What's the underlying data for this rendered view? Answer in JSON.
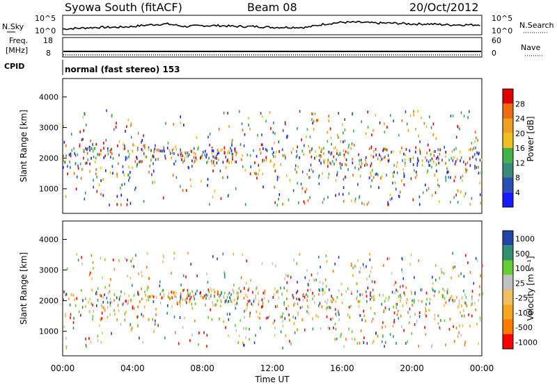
{
  "header": {
    "title": "Syowa South (fitACF)",
    "beam": "Beam 08",
    "date": "20/Oct/2012"
  },
  "sky_panel": {
    "left_label": "N.Sky",
    "right_label": "N.Search",
    "left_ticks": [
      "10^5",
      "10^0"
    ],
    "right_ticks": [
      "10^5",
      "10^0"
    ]
  },
  "freq_panel": {
    "label_top": "Freq.",
    "label_bottom": "[MHz]",
    "right_label": "Nave",
    "left_ticks": [
      "18",
      "8"
    ],
    "right_ticks": [
      "60",
      "0"
    ]
  },
  "cpid": {
    "label": "CPID",
    "text": "normal (fast stereo) 153"
  },
  "colors": {
    "power_scale": [
      "#1a1aff",
      "#2a4fb4",
      "#3a8a7a",
      "#44b24a",
      "#f0c020",
      "#f0a020",
      "#ee6a10",
      "#e00000"
    ],
    "velocity_scale": [
      "#ff0000",
      "#ff7a00",
      "#f5a623",
      "#f0c060",
      "#c0c0c0",
      "#66cc33",
      "#2f8f6f",
      "#2244aa"
    ]
  },
  "chart_data": [
    {
      "type": "line",
      "name": "N.Sky / N.Search",
      "ylim_ticks": [
        "10^0",
        "10^5"
      ],
      "xlim": [
        "00:00",
        "24:00"
      ],
      "description_values": {
        "x_hours": [
          0,
          1,
          2,
          3,
          4,
          5,
          6,
          7,
          8,
          9,
          10,
          11,
          12,
          13,
          14,
          15,
          16,
          17,
          18,
          19,
          20,
          21,
          22,
          23,
          24
        ],
        "level": [
          0.2,
          0.25,
          0.3,
          0.3,
          0.35,
          0.45,
          0.5,
          0.35,
          0.4,
          0.4,
          0.35,
          0.35,
          0.3,
          0.3,
          0.3,
          0.5,
          0.6,
          0.6,
          0.55,
          0.55,
          0.5,
          0.5,
          0.45,
          0.45,
          0.45
        ]
      }
    },
    {
      "type": "scatter",
      "name": "Power",
      "ylabel": "Slant Range [km]",
      "yticks": [
        1000,
        2000,
        3000,
        4000
      ],
      "ylim": [
        200,
        4600
      ],
      "colorbar": {
        "label": "Power [dB]",
        "ticks": [
          "4",
          "8",
          "12",
          "16",
          "20",
          "24",
          "28"
        ]
      },
      "xticks": [
        "00:00",
        "04:00",
        "08:00",
        "12:00",
        "16:00",
        "20:00",
        "00:00"
      ]
    },
    {
      "type": "scatter",
      "name": "Velocity",
      "ylabel": "Slant Range [km]",
      "yticks": [
        1000,
        2000,
        3000,
        4000
      ],
      "ylim": [
        200,
        4600
      ],
      "xlabel": "Time UT",
      "colorbar": {
        "label": "Velocity [m s⁻¹]",
        "ticks": [
          "1000",
          "500",
          "100",
          "25",
          "-25",
          "-100",
          "-500",
          "-1000"
        ]
      },
      "xticks": [
        "00:00",
        "04:00",
        "08:00",
        "12:00",
        "16:00",
        "20:00",
        "00:00"
      ]
    }
  ]
}
